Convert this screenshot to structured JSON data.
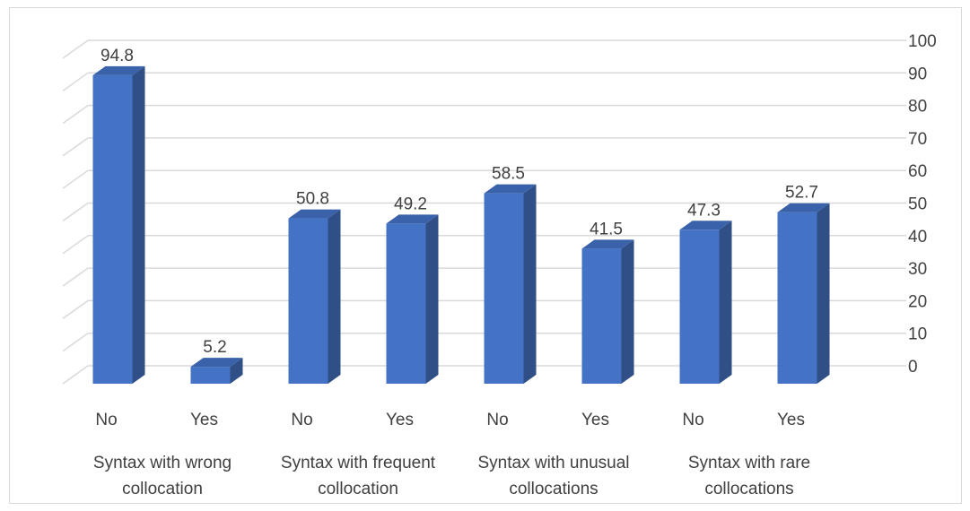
{
  "chart_data": {
    "type": "bar",
    "style": "3d-column",
    "title": "",
    "xlabel": "",
    "ylabel": "",
    "ylim": [
      0,
      100
    ],
    "y_ticks": [
      0,
      10,
      20,
      30,
      40,
      50,
      60,
      70,
      80,
      90,
      100
    ],
    "y_axis_position": "right",
    "grid": true,
    "bar_color": "#4472c4",
    "groups": [
      {
        "label": "Syntax with wrong collocation",
        "label_lines": [
          "Syntax with wrong",
          "collocation"
        ],
        "bars": [
          {
            "category": "No",
            "value": 94.8
          },
          {
            "category": "Yes",
            "value": 5.2
          }
        ]
      },
      {
        "label": "Syntax with frequent collocation",
        "label_lines": [
          "Syntax with frequent",
          "collocation"
        ],
        "bars": [
          {
            "category": "No",
            "value": 50.8
          },
          {
            "category": "Yes",
            "value": 49.2
          }
        ]
      },
      {
        "label": "Syntax with unusual collocations",
        "label_lines": [
          "Syntax with unusual",
          "collocations"
        ],
        "bars": [
          {
            "category": "No",
            "value": 58.5
          },
          {
            "category": "Yes",
            "value": 41.5
          }
        ]
      },
      {
        "label": "Syntax with rare collocations",
        "label_lines": [
          "Syntax with rare",
          "collocations"
        ],
        "bars": [
          {
            "category": "No",
            "value": 47.3
          },
          {
            "category": "Yes",
            "value": 52.7
          }
        ]
      }
    ]
  }
}
